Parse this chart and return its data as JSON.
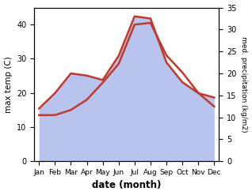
{
  "months": [
    "Jan",
    "Feb",
    "Mar",
    "Apr",
    "May",
    "Jun",
    "Jul",
    "Aug",
    "Sep",
    "Oct",
    "Nov",
    "Dec"
  ],
  "max_temp": [
    13.5,
    13.5,
    15.0,
    18.0,
    23.0,
    28.5,
    40.0,
    40.5,
    31.0,
    26.0,
    20.0,
    16.0
  ],
  "precipitation": [
    12.0,
    15.5,
    20.0,
    19.5,
    18.5,
    24.0,
    33.0,
    32.5,
    22.5,
    18.0,
    15.5,
    14.5
  ],
  "temp_color": "#c0392b",
  "precip_fill_color": "#b8c4ee",
  "precip_fill_alpha": 1.0,
  "temp_ylim": [
    0,
    45
  ],
  "precip_ylim": [
    0,
    35
  ],
  "temp_yticks": [
    0,
    10,
    20,
    30,
    40
  ],
  "precip_yticks": [
    0,
    5,
    10,
    15,
    20,
    25,
    30,
    35
  ],
  "xlabel": "date (month)",
  "ylabel_left": "max temp (C)",
  "ylabel_right": "med. precipitation (kg/m2)",
  "temp_linewidth": 1.8,
  "background_color": "#ffffff"
}
